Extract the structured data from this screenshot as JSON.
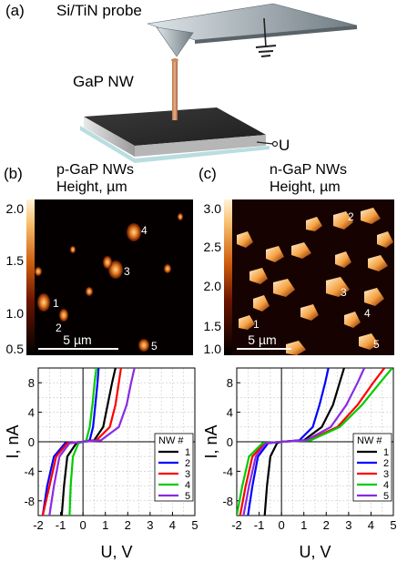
{
  "panel_a": {
    "label": "(a)",
    "probe_label": "Si/TiN probe",
    "nw_label": "GaP NW",
    "voltage_label": "U"
  },
  "panel_b": {
    "label": "(b)",
    "title": "p-GaP NWs",
    "subtitle": "Height, µm",
    "colorbar_ticks": [
      "2.0",
      "1.5",
      "1.0",
      "0.5"
    ],
    "scalebar": "5 µm",
    "wire_labels": [
      "1",
      "2",
      "3",
      "4",
      "5"
    ]
  },
  "panel_c": {
    "label": "(c)",
    "title": "n-GaP NWs",
    "subtitle": "Height, µm",
    "colorbar_ticks": [
      "3.0",
      "2.5",
      "2.0",
      "1.5",
      "1.0"
    ],
    "scalebar": "5 µm",
    "wire_labels": [
      "1",
      "2",
      "3",
      "4",
      "5"
    ]
  },
  "colors": {
    "nw1": "#000000",
    "nw2": "#0000ff",
    "nw3": "#ff0000",
    "nw4": "#00cc00",
    "nw5": "#8a2be2"
  },
  "chart_data": [
    {
      "type": "line",
      "xlabel": "U, V",
      "ylabel": "I, nA",
      "xlim": [
        -2,
        5
      ],
      "ylim": [
        -10,
        10
      ],
      "xticks": [
        "-2",
        "-1",
        "0",
        "1",
        "2",
        "3",
        "4",
        "5"
      ],
      "yticks": [
        "8",
        "4",
        "0",
        "-4",
        "-8"
      ],
      "legend_title": "NW #",
      "legend_position": "bottom-right",
      "grid": true,
      "series": [
        {
          "name": "1",
          "x": [
            -0.95,
            -0.85,
            -0.7,
            -0.3,
            0,
            0.5,
            0.9,
            1.1,
            1.3,
            1.45
          ],
          "y": [
            -10,
            -6,
            -2,
            -0.2,
            0,
            0.2,
            2,
            5,
            8,
            10
          ]
        },
        {
          "name": "2",
          "x": [
            -1.8,
            -1.6,
            -1.3,
            -0.8,
            0,
            0.3,
            0.45,
            0.55,
            0.65,
            0.7
          ],
          "y": [
            -10,
            -6,
            -2,
            -0.2,
            0,
            0.2,
            2,
            5,
            8,
            10
          ]
        },
        {
          "name": "3",
          "x": [
            -1.8,
            -1.5,
            -1.2,
            -0.7,
            0,
            0.6,
            1.2,
            1.45,
            1.6,
            1.7
          ],
          "y": [
            -10,
            -6,
            -2,
            -0.2,
            0,
            0.2,
            2,
            5,
            8,
            10
          ]
        },
        {
          "name": "4",
          "x": [
            -0.6,
            -0.55,
            -0.45,
            -0.2,
            0,
            0.15,
            0.3,
            0.42,
            0.52,
            0.6
          ],
          "y": [
            -10,
            -6,
            -2,
            -0.2,
            0,
            0.2,
            2,
            5,
            8,
            10
          ]
        },
        {
          "name": "5",
          "x": [
            -1.5,
            -1.3,
            -1.05,
            -0.6,
            0,
            0.8,
            1.6,
            1.95,
            2.15,
            2.3
          ],
          "y": [
            -10,
            -6,
            -2,
            -0.2,
            0,
            0.2,
            2,
            5,
            8,
            10
          ]
        }
      ]
    },
    {
      "type": "line",
      "xlabel": "U, V",
      "ylabel": "I, nA",
      "xlim": [
        -2,
        5
      ],
      "ylim": [
        -10,
        10
      ],
      "xticks": [
        "-2",
        "-1",
        "0",
        "1",
        "2",
        "3",
        "4",
        "5"
      ],
      "yticks": [
        "8",
        "4",
        "0",
        "-4",
        "-8"
      ],
      "legend_title": "NW #",
      "legend_position": "bottom-right",
      "grid": true,
      "series": [
        {
          "name": "1",
          "x": [
            -0.75,
            -0.65,
            -0.5,
            -0.2,
            0,
            1.0,
            1.8,
            2.3,
            2.6,
            2.8
          ],
          "y": [
            -10,
            -6,
            -2,
            -0.2,
            0,
            0.2,
            2,
            5,
            8,
            10
          ]
        },
        {
          "name": "2",
          "x": [
            -1.5,
            -1.3,
            -1.05,
            -0.6,
            0,
            0.8,
            1.4,
            1.7,
            1.95,
            2.1
          ],
          "y": [
            -10,
            -6,
            -2,
            -0.2,
            0,
            0.2,
            2,
            5,
            8,
            10
          ]
        },
        {
          "name": "3",
          "x": [
            -1.85,
            -1.6,
            -1.3,
            -0.75,
            0,
            1.2,
            2.5,
            3.4,
            4.1,
            4.6
          ],
          "y": [
            -10,
            -6,
            -2,
            -0.2,
            0,
            0.2,
            2,
            5,
            8,
            10
          ]
        },
        {
          "name": "4",
          "x": [
            -2.0,
            -1.75,
            -1.45,
            -0.85,
            0,
            1.3,
            2.6,
            3.6,
            4.4,
            4.95
          ],
          "y": [
            -10,
            -6,
            -2,
            -0.2,
            0,
            0.2,
            2,
            5,
            8,
            10
          ]
        },
        {
          "name": "5",
          "x": [
            -1.7,
            -1.45,
            -1.15,
            -0.7,
            0,
            1.1,
            2.2,
            2.9,
            3.4,
            3.7
          ],
          "y": [
            -10,
            -6,
            -2,
            -0.2,
            0,
            0.2,
            2,
            5,
            8,
            10
          ]
        }
      ]
    }
  ]
}
